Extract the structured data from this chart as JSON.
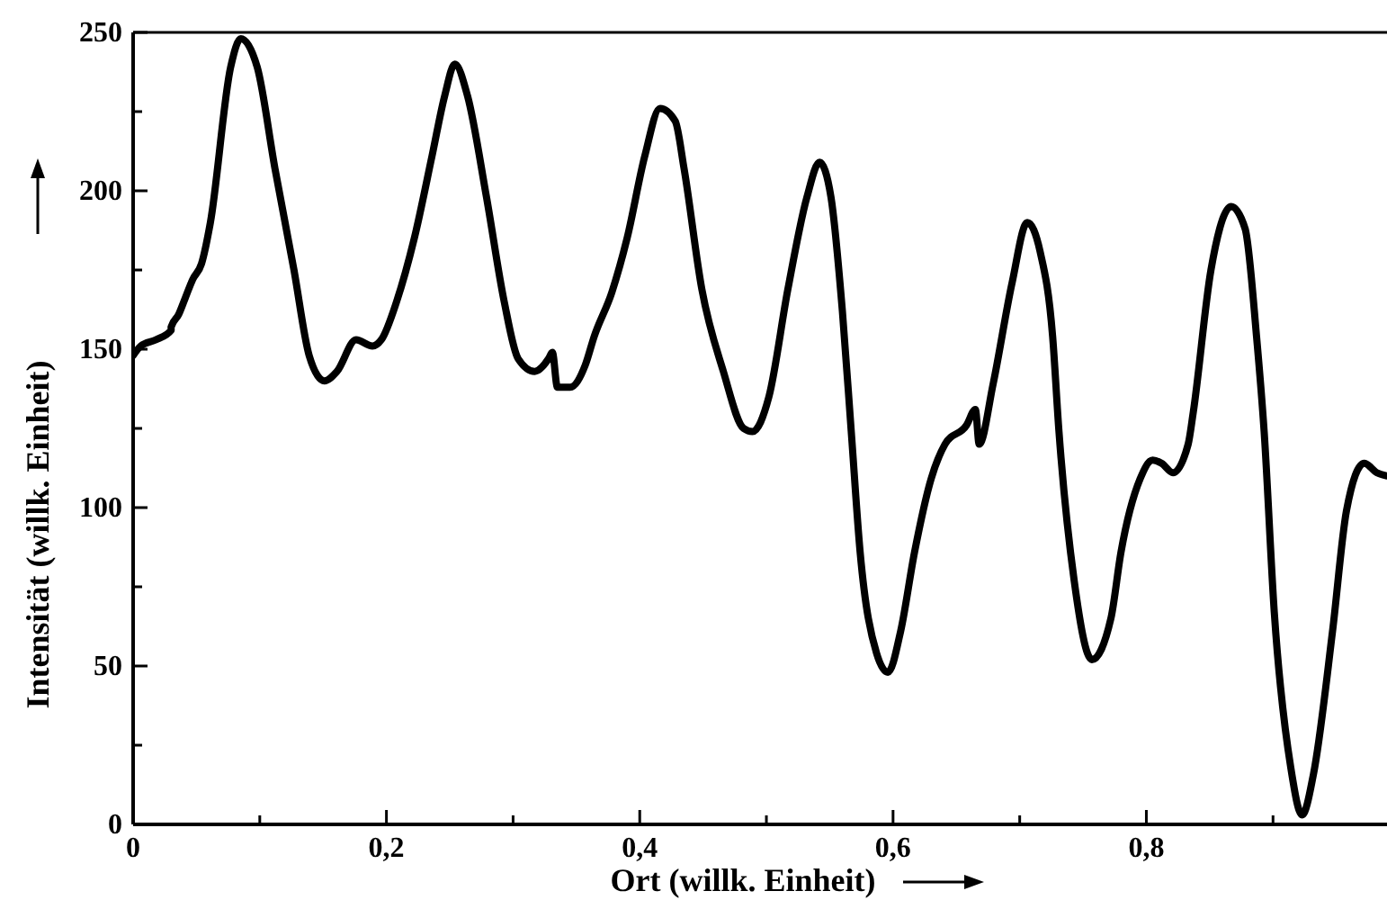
{
  "chart_data": {
    "type": "line",
    "xlabel": "Ort (willk. Einheit)",
    "ylabel": "Intensität (willk. Einheit)",
    "xlim": [
      0,
      0.99
    ],
    "ylim": [
      0,
      250
    ],
    "xticks": [
      0,
      {
        "value": 0.1,
        "label": null
      },
      {
        "value": 0.2,
        "label": "0,2"
      },
      {
        "value": 0.3,
        "label": null
      },
      {
        "value": 0.4,
        "label": "0,4"
      },
      {
        "value": 0.5,
        "label": null
      },
      {
        "value": 0.6,
        "label": "0,6"
      },
      {
        "value": 0.7,
        "label": null
      },
      {
        "value": 0.8,
        "label": "0,8"
      },
      {
        "value": 0.9,
        "label": null
      }
    ],
    "yticks": [
      0,
      {
        "value": 25,
        "label": null
      },
      50,
      {
        "value": 75,
        "label": null
      },
      100,
      {
        "value": 125,
        "label": null
      },
      150,
      {
        "value": 175,
        "label": null
      },
      200,
      {
        "value": 225,
        "label": null
      },
      250
    ],
    "grid": false,
    "marker": "none",
    "line_style": "solid",
    "series": [
      {
        "color": "#000000",
        "x": [
          0,
          0.006,
          0.018,
          0.03,
          0.03,
          0.036,
          0.041,
          0.047,
          0.054,
          0.061,
          0.077,
          0.085,
          0.098,
          0.112,
          0.127,
          0.139,
          0.151,
          0.161,
          0.176,
          0.189,
          0.196,
          0.208,
          0.222,
          0.236,
          0.246,
          0.254,
          0.264,
          0.279,
          0.293,
          0.304,
          0.317,
          0.328,
          0.331,
          0.335,
          0.345,
          0.357,
          0.364,
          0.378,
          0.39,
          0.404,
          0.416,
          0.428,
          0.435,
          0.449,
          0.466,
          0.482,
          0.489,
          0.502,
          0.517,
          0.532,
          0.542,
          0.551,
          0.56,
          0.567,
          0.574,
          0.587,
          0.596,
          0.606,
          0.617,
          0.63,
          0.641,
          0.658,
          0.665,
          0.668,
          0.679,
          0.694,
          0.706,
          0.716,
          0.726,
          0.731,
          0.743,
          0.757,
          0.772,
          0.78,
          0.795,
          0.805,
          0.812,
          0.821,
          0.833,
          0.837,
          0.851,
          0.867,
          0.878,
          0.887,
          0.893,
          0.901,
          0.914,
          0.923,
          0.932,
          0.947,
          0.958,
          0.972,
          0.982,
          0.99
        ],
        "values": [
          148,
          151,
          153,
          156,
          157,
          161,
          166,
          172,
          177,
          190,
          239,
          248,
          239,
          207,
          175,
          148,
          140,
          143,
          153,
          151,
          153,
          165,
          185,
          211,
          230,
          240,
          230,
          198,
          165,
          147,
          143,
          147,
          149,
          138,
          138,
          145,
          154,
          168,
          185,
          211,
          226,
          222,
          207,
          169,
          143,
          125,
          124,
          135,
          169,
          198,
          209,
          198,
          162,
          124,
          86,
          54,
          48,
          61,
          86,
          109,
          120,
          126,
          131,
          120,
          139,
          171,
          190,
          181,
          154,
          124,
          77,
          52,
          65,
          86,
          109,
          115,
          114,
          111,
          120,
          130,
          175,
          195,
          188,
          154,
          124,
          67,
          18,
          3,
          16,
          61,
          99,
          114,
          111,
          110
        ]
      }
    ]
  }
}
